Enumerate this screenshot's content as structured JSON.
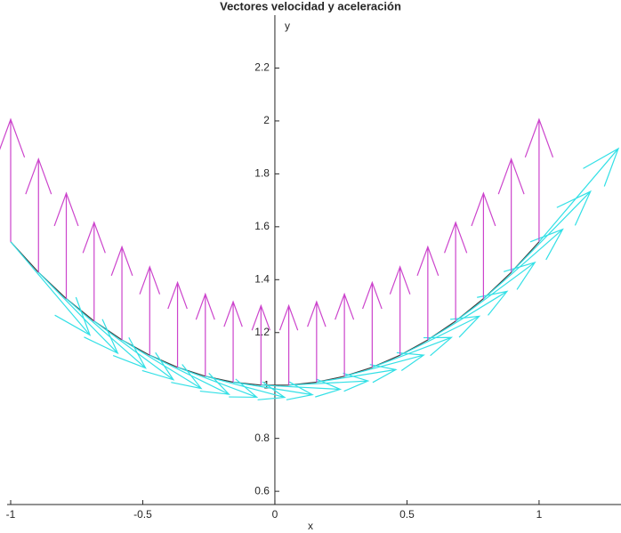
{
  "chart_data": {
    "type": "quiver",
    "title": "Vectores velocidad y aceleración",
    "xlabel": "x",
    "ylabel": "y",
    "xlim": [
      -1,
      1.3
    ],
    "ylim": [
      0.55,
      2.4
    ],
    "xticks": [
      -1,
      -0.5,
      0,
      0.5,
      1
    ],
    "yticks": [
      0.6,
      0.8,
      1,
      1.2,
      1.4,
      1.6,
      1.8,
      2,
      2.2
    ],
    "curve_color": "#404040",
    "x": [
      -1,
      -0.8947,
      -0.7895,
      -0.6842,
      -0.5789,
      -0.4737,
      -0.3684,
      -0.2632,
      -0.1579,
      -0.0526,
      0.0526,
      0.1579,
      0.2632,
      0.3684,
      0.4737,
      0.5789,
      0.6842,
      0.7895,
      0.8947,
      1
    ],
    "y": [
      1.5431,
      1.4277,
      1.3282,
      1.2434,
      1.1723,
      1.1143,
      1.0686,
      1.0349,
      1.0125,
      1.0014,
      1.0014,
      1.0125,
      1.0349,
      1.0686,
      1.1143,
      1.1723,
      1.2434,
      1.3282,
      1.4277,
      1.5431
    ],
    "series": [
      {
        "color": "#33e0e6",
        "u": [
          0.3,
          0.3,
          0.3,
          0.3,
          0.3,
          0.3,
          0.3,
          0.3,
          0.3,
          0.3,
          0.3,
          0.3,
          0.3,
          0.3,
          0.3,
          0.3,
          0.3,
          0.3,
          0.3,
          0.3
        ],
        "v": [
          -0.3526,
          -0.3057,
          -0.2622,
          -0.2217,
          -0.1835,
          -0.1475,
          -0.113,
          -0.0799,
          -0.0476,
          -0.0158,
          0.0158,
          0.0476,
          0.0799,
          0.113,
          0.1475,
          0.1835,
          0.2217,
          0.2622,
          0.3057,
          0.3526
        ]
      },
      {
        "color": "#cc44cc",
        "u": [
          0,
          0,
          0,
          0,
          0,
          0,
          0,
          0,
          0,
          0,
          0,
          0,
          0,
          0,
          0,
          0,
          0,
          0,
          0,
          0
        ],
        "v": [
          0.4629,
          0.4283,
          0.3985,
          0.373,
          0.3517,
          0.3343,
          0.3206,
          0.3105,
          0.3038,
          0.3004,
          0.3004,
          0.3038,
          0.3105,
          0.3206,
          0.3343,
          0.3517,
          0.373,
          0.3985,
          0.4283,
          0.4629
        ]
      }
    ]
  }
}
